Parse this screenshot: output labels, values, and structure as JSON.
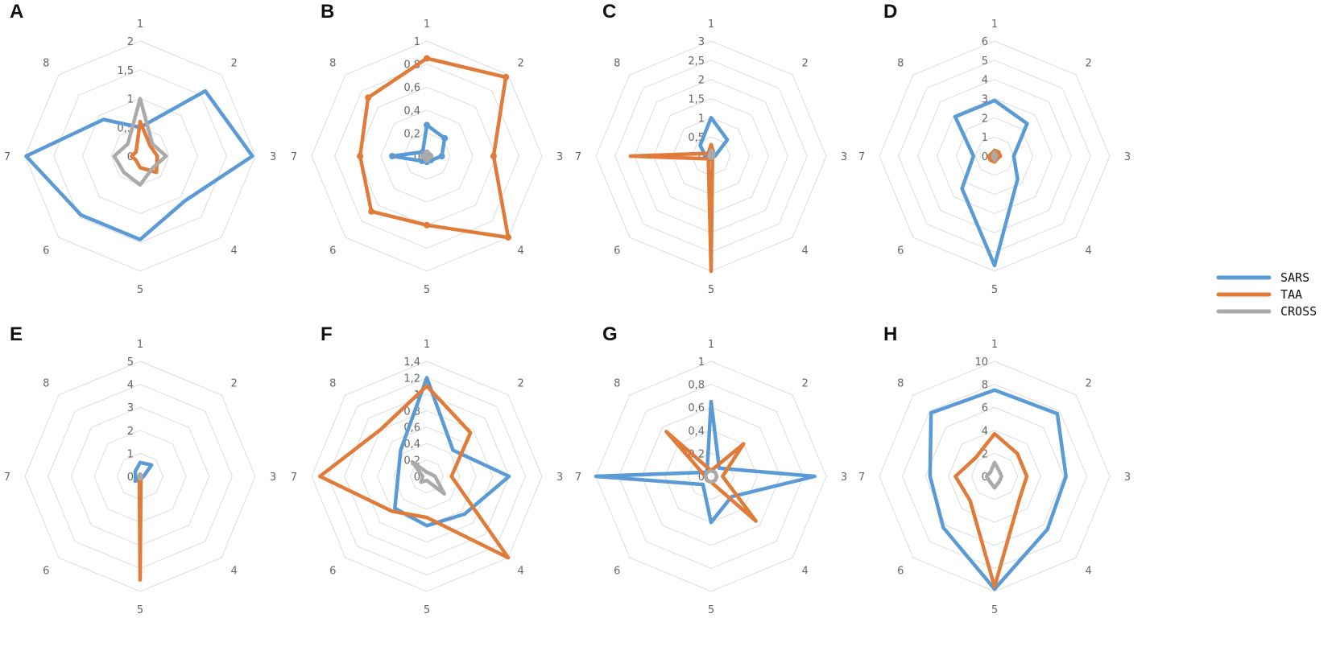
{
  "colors": {
    "SARS": "#5b9bd5",
    "TAA": "#e07b39",
    "CROSS": "#aaaaaa",
    "grid": "#dcdcdc"
  },
  "legend": {
    "entries": [
      "SARS",
      "TAA",
      "CROSS"
    ],
    "placement": "right"
  },
  "chart_data": [
    {
      "type": "radar",
      "panel": "A",
      "categories": [
        "1",
        "2",
        "3",
        "4",
        "5",
        "6",
        "7",
        "8"
      ],
      "ticks": [
        "0",
        "0,5",
        "1",
        "1,5",
        "2"
      ],
      "rmax": 2,
      "series": [
        {
          "name": "SARS",
          "values": [
            0.5,
            1.6,
            1.95,
            1.1,
            1.45,
            1.45,
            1.98,
            0.9
          ]
        },
        {
          "name": "TAA",
          "values": [
            0.6,
            0.25,
            0.3,
            0.4,
            0.2,
            0.1,
            0.15,
            0.1
          ]
        },
        {
          "name": "CROSS",
          "values": [
            1.0,
            0.3,
            0.45,
            0.3,
            0.5,
            0.4,
            0.45,
            0.3
          ]
        }
      ]
    },
    {
      "type": "radar",
      "panel": "B",
      "categories": [
        "1",
        "2",
        "3",
        "4",
        "5",
        "6",
        "7",
        "8"
      ],
      "ticks": [
        "0",
        "0,2",
        "0,4",
        "0,6",
        "0,8",
        "1"
      ],
      "rmax": 1,
      "series": [
        {
          "name": "SARS",
          "values": [
            0.27,
            0.22,
            0.13,
            0.05,
            0.05,
            0.06,
            0.3,
            0.05
          ]
        },
        {
          "name": "TAA",
          "values": [
            0.85,
            0.97,
            0.58,
            1.0,
            0.6,
            0.68,
            0.58,
            0.72
          ]
        },
        {
          "name": "CROSS",
          "values": [
            0.03,
            0.02,
            0.03,
            0.02,
            0.03,
            0.02,
            0.03,
            0.02
          ]
        }
      ]
    },
    {
      "type": "radar",
      "panel": "C",
      "categories": [
        "1",
        "2",
        "3",
        "4",
        "5",
        "6",
        "7",
        "8"
      ],
      "ticks": [
        "0",
        "0,5",
        "1",
        "1,5",
        "2",
        "2,5",
        "3"
      ],
      "rmax": 3,
      "series": [
        {
          "name": "SARS",
          "values": [
            1.0,
            0.6,
            0.1,
            0.05,
            0.1,
            0.1,
            0.15,
            0.4
          ]
        },
        {
          "name": "TAA",
          "values": [
            0.3,
            0.1,
            0.05,
            0.05,
            3.0,
            0.1,
            2.1,
            0.1
          ]
        },
        {
          "name": "CROSS",
          "values": [
            0.15,
            0.1,
            0.05,
            0.05,
            0.05,
            0.05,
            0.05,
            0.05
          ]
        }
      ]
    },
    {
      "type": "radar",
      "panel": "D",
      "categories": [
        "1",
        "2",
        "3",
        "4",
        "5",
        "6",
        "7",
        "8"
      ],
      "ticks": [
        "0",
        "1",
        "2",
        "3",
        "4",
        "5",
        "6"
      ],
      "rmax": 6,
      "series": [
        {
          "name": "SARS",
          "values": [
            2.9,
            2.4,
            1.0,
            1.7,
            5.7,
            2.4,
            1.1,
            2.9
          ]
        },
        {
          "name": "TAA",
          "values": [
            0.3,
            0.3,
            0.3,
            0.2,
            0.3,
            0.3,
            0.3,
            0.2
          ]
        },
        {
          "name": "CROSS",
          "values": [
            0.2,
            0.1,
            0.1,
            0.1,
            0.2,
            0.1,
            0.1,
            0.1
          ]
        }
      ]
    },
    {
      "type": "radar",
      "panel": "E",
      "categories": [
        "1",
        "2",
        "3",
        "4",
        "5",
        "6",
        "7",
        "8"
      ],
      "ticks": [
        "0",
        "1",
        "2",
        "3",
        "4",
        "5"
      ],
      "rmax": 5,
      "series": [
        {
          "name": "SARS",
          "values": [
            0.6,
            0.7,
            0.15,
            0.1,
            0.1,
            0.3,
            0.2,
            0.3
          ]
        },
        {
          "name": "TAA",
          "values": [
            0.1,
            0.05,
            0.05,
            0.05,
            4.5,
            0.05,
            0.05,
            0.05
          ]
        },
        {
          "name": "CROSS",
          "values": [
            0.1,
            0.05,
            0.05,
            0.05,
            0.1,
            0.05,
            0.05,
            0.05
          ]
        }
      ]
    },
    {
      "type": "radar",
      "panel": "F",
      "categories": [
        "1",
        "2",
        "3",
        "4",
        "5",
        "6",
        "7",
        "8"
      ],
      "ticks": [
        "0",
        "0,2",
        "0,4",
        "0,6",
        "0,8",
        "1",
        "1,2",
        "1,4"
      ],
      "rmax": 1.4,
      "series": [
        {
          "name": "SARS",
          "values": [
            1.2,
            0.45,
            1.0,
            0.65,
            0.6,
            0.55,
            0.35,
            0.45
          ]
        },
        {
          "name": "TAA",
          "values": [
            1.1,
            0.75,
            0.3,
            1.4,
            0.5,
            0.6,
            1.3,
            0.8
          ]
        },
        {
          "name": "CROSS",
          "values": [
            0.05,
            0.05,
            0.1,
            0.3,
            0.05,
            0.1,
            0.05,
            0.25
          ]
        }
      ]
    },
    {
      "type": "radar",
      "panel": "G",
      "categories": [
        "1",
        "2",
        "3",
        "4",
        "5",
        "6",
        "7",
        "8"
      ],
      "ticks": [
        "0",
        "0,2",
        "0,4",
        "0,6",
        "0,8",
        "1"
      ],
      "rmax": 1,
      "series": [
        {
          "name": "SARS",
          "values": [
            0.65,
            0.1,
            0.9,
            0.25,
            0.4,
            0.1,
            1.0,
            0.05
          ]
        },
        {
          "name": "TAA",
          "values": [
            0.05,
            0.4,
            0.1,
            0.55,
            0.05,
            0.05,
            0.05,
            0.55
          ]
        },
        {
          "name": "CROSS",
          "values": [
            0.05,
            0.05,
            0.05,
            0.05,
            0.05,
            0.05,
            0.05,
            0.05
          ]
        }
      ]
    },
    {
      "type": "radar",
      "panel": "H",
      "categories": [
        "1",
        "2",
        "3",
        "4",
        "5",
        "6",
        "7",
        "8"
      ],
      "ticks": [
        "0",
        "2",
        "4",
        "6",
        "8",
        "10"
      ],
      "rmax": 10,
      "series": [
        {
          "name": "SARS",
          "values": [
            7.5,
            7.7,
            6.2,
            6.5,
            9.8,
            6.3,
            5.6,
            7.8
          ]
        },
        {
          "name": "TAA",
          "values": [
            3.7,
            2.8,
            2.8,
            3.0,
            9.6,
            3.0,
            3.4,
            2.3
          ]
        },
        {
          "name": "CROSS",
          "values": [
            1.2,
            0.6,
            0.6,
            0.6,
            1.0,
            0.6,
            0.7,
            0.5
          ]
        }
      ]
    }
  ]
}
